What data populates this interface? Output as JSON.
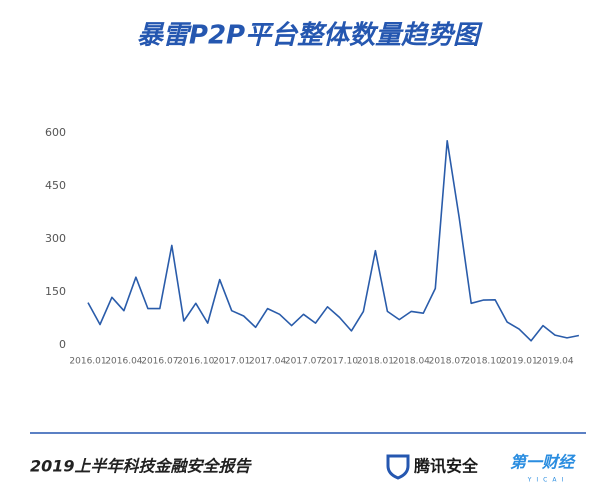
{
  "chart_data": {
    "type": "line",
    "title": "暴雷P2P平台整体数量趋势图",
    "categories": [
      "2016.01",
      null,
      null,
      "2016.04",
      null,
      null,
      "2016.07",
      null,
      null,
      "2016.10",
      null,
      null,
      "2017.01",
      null,
      null,
      "2017.04",
      null,
      null,
      "2017.07",
      null,
      null,
      "2017.10",
      null,
      null,
      "2018.01",
      null,
      null,
      "2018.04",
      null,
      null,
      "2018.07",
      null,
      null,
      "2018.10",
      null,
      null,
      "2019.01",
      null,
      null,
      "2019.04",
      null,
      null
    ],
    "values": [
      120,
      58,
      135,
      97,
      192,
      103,
      103,
      282,
      68,
      118,
      62,
      185,
      97,
      82,
      50,
      103,
      87,
      55,
      87,
      62,
      108,
      78,
      40,
      95,
      267,
      95,
      72,
      95,
      90,
      160,
      578,
      360,
      118,
      127,
      128,
      65,
      45,
      12,
      55,
      28,
      20,
      27
    ],
    "color": "#2a5caa",
    "ylim": [
      0,
      600
    ],
    "yticks": [
      0,
      150,
      300,
      450,
      600
    ],
    "grid": false
  },
  "footer": {
    "report": "2019上半年科技金融安全报告",
    "brand1": "腾讯安全",
    "brand2": "第一财经",
    "brand2_sub": "YICAI"
  }
}
